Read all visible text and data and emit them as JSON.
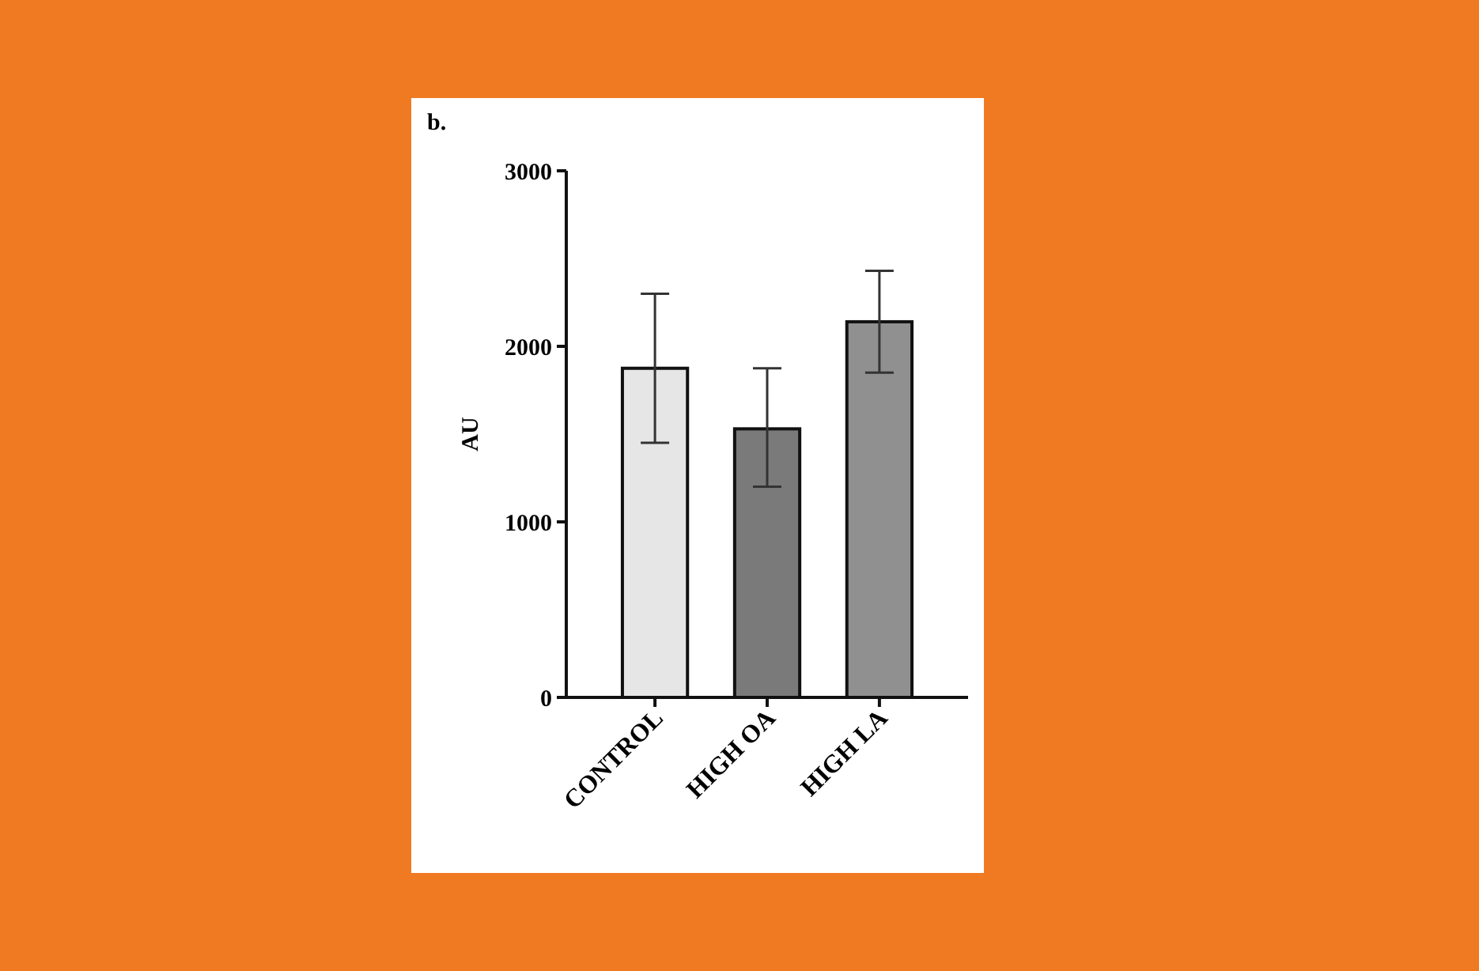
{
  "chart_data": {
    "type": "bar",
    "title": "b.",
    "ylabel": "AU",
    "categories": [
      "CONTROL",
      "HIGH OA",
      "HIGH LA"
    ],
    "values": [
      1875,
      1530,
      2140
    ],
    "errors": [
      [
        1450,
        2300
      ],
      [
        1200,
        1875
      ],
      [
        1850,
        2430
      ]
    ],
    "colors": [
      "#e6e6e6",
      "#7a7a7a",
      "#909090"
    ],
    "ylim": [
      0,
      3000
    ],
    "yticks": [
      0,
      1000,
      2000,
      3000
    ],
    "grid": false
  }
}
